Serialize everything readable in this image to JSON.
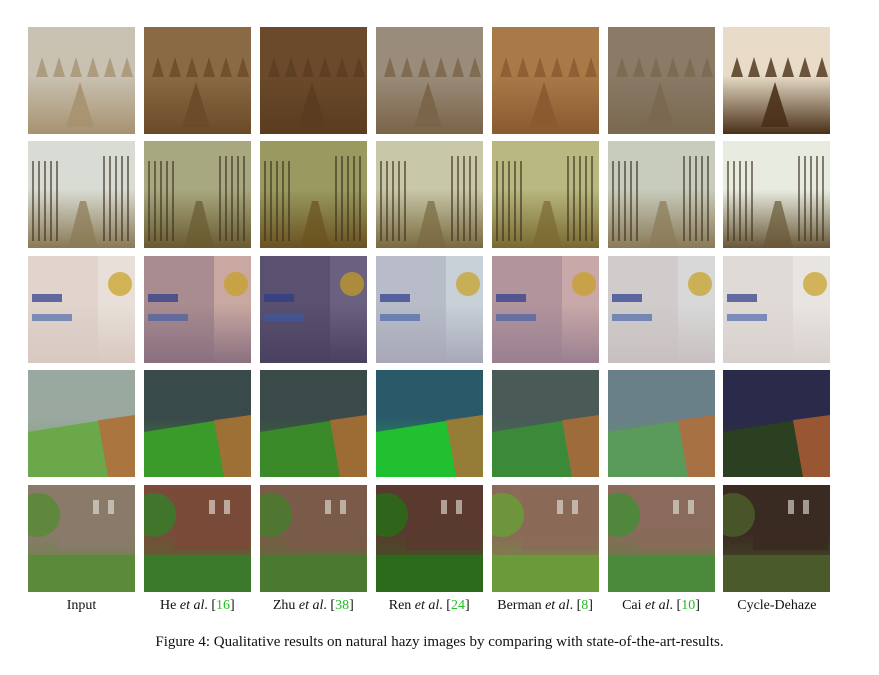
{
  "figure": {
    "caption": "Figure 4: Qualitative results on natural hazy images by comparing with state-of-the-art-results.",
    "methods": [
      {
        "name": "Input",
        "etal": "",
        "suffix": "",
        "ref": ""
      },
      {
        "name": "He ",
        "etal": "et al",
        "suffix": ". [",
        "ref": "16",
        "close": "]"
      },
      {
        "name": "Zhu ",
        "etal": "et al",
        "suffix": ". [",
        "ref": "38",
        "close": "]"
      },
      {
        "name": "Ren ",
        "etal": "et al",
        "suffix": ". [",
        "ref": "24",
        "close": "]"
      },
      {
        "name": "Berman ",
        "etal": "et al",
        "suffix": ". [",
        "ref": "8",
        "close": "]"
      },
      {
        "name": "Cai ",
        "etal": "et al",
        "suffix": ". [",
        "ref": "10",
        "close": "]"
      },
      {
        "name": "Cycle-Dehaze",
        "etal": "",
        "suffix": "",
        "ref": ""
      }
    ],
    "scenes": [
      {
        "name": "haystack-field",
        "sky": [
          "#c9c2b3",
          "#8a6a45",
          "#6a4a2a",
          "#9a8c7a",
          "#a87a48",
          "#8a7a66",
          "#e8dcc8"
        ],
        "ground": [
          "#a79270",
          "#6b4a28",
          "#5a3c20",
          "#7a6448",
          "#8a5a30",
          "#7a6850",
          "#4a3018"
        ]
      },
      {
        "name": "forest-path",
        "sky": [
          "#d9dcd4",
          "#a8a880",
          "#9a9a60",
          "#c8c8a8",
          "#b8b880",
          "#c8ccbc",
          "#e8ece0"
        ],
        "ground": [
          "#8a7a55",
          "#6a5a30",
          "#6a5220",
          "#7a6a40",
          "#7a6a30",
          "#8a7a58",
          "#6a5838"
        ]
      },
      {
        "name": "street-signs",
        "sky": [
          "#e8e0d8",
          "#c8a8a0",
          "#6a6080",
          "#c8d0d8",
          "#c8a8a8",
          "#d8d8d8",
          "#e8e4e0"
        ],
        "ground": [
          "#d8c8c0",
          "#8a7080",
          "#4a4060",
          "#a8a8b8",
          "#9a8090",
          "#c8c0c0",
          "#d8d0cc"
        ]
      },
      {
        "name": "stadium",
        "sky": [
          "#9aa8a0",
          "#3a4a4a",
          "#3a4a48",
          "#2a5a6a",
          "#4a5a58",
          "#6a8088",
          "#2a2a4a"
        ],
        "ground": [
          "#6aa84a",
          "#3a9a2a",
          "#3a8a2a",
          "#20c030",
          "#3a8a3a",
          "#5a9a5a",
          "#2a4020"
        ]
      },
      {
        "name": "garden-house",
        "sky": [
          "#8a7a6a",
          "#7a4a3a",
          "#7a5a48",
          "#5a3a30",
          "#8a6a58",
          "#8a6a5a",
          "#3a2a22"
        ],
        "ground": [
          "#5a8a3a",
          "#3a7a2a",
          "#4a7a30",
          "#2a6a1a",
          "#6a9a3a",
          "#4a8a3a",
          "#4a5a2a"
        ]
      }
    ]
  }
}
